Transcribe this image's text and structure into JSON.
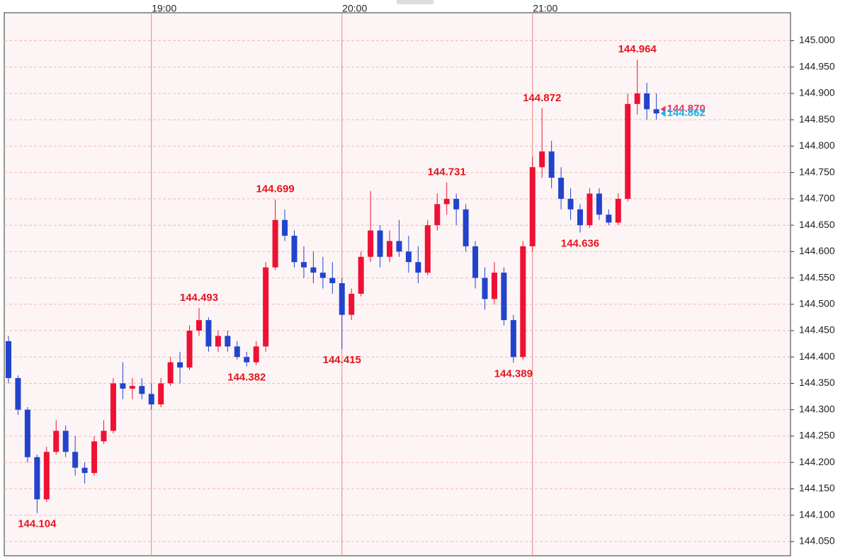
{
  "chart_data": {
    "type": "candlestick",
    "categories": [
      null,
      null,
      null,
      null,
      null,
      null,
      null,
      null,
      null,
      null,
      null,
      null,
      null,
      null,
      null,
      "19:00",
      null,
      null,
      null,
      null,
      null,
      null,
      null,
      null,
      null,
      null,
      null,
      null,
      null,
      null,
      null,
      null,
      null,
      null,
      null,
      "20:00",
      null,
      null,
      null,
      null,
      null,
      null,
      null,
      null,
      null,
      null,
      null,
      null,
      null,
      null,
      null,
      null,
      null,
      null,
      null,
      "21:00",
      null,
      null,
      null,
      null,
      null,
      null,
      null,
      null,
      null,
      null,
      null,
      null,
      null
    ],
    "open": [
      144.43,
      144.36,
      144.3,
      144.21,
      144.13,
      144.22,
      144.26,
      144.22,
      144.19,
      144.18,
      144.24,
      144.26,
      144.35,
      144.34,
      144.345,
      144.33,
      144.31,
      144.35,
      144.39,
      144.38,
      144.45,
      144.47,
      144.42,
      144.44,
      144.42,
      144.4,
      144.39,
      144.42,
      144.57,
      144.66,
      144.63,
      144.58,
      144.57,
      144.56,
      144.55,
      144.54,
      144.48,
      144.52,
      144.59,
      144.64,
      144.59,
      144.62,
      144.6,
      144.58,
      144.56,
      144.65,
      144.69,
      144.7,
      144.68,
      144.61,
      144.55,
      144.51,
      144.56,
      144.47,
      144.4,
      144.61,
      144.76,
      144.79,
      144.74,
      144.7,
      144.68,
      144.65,
      144.71,
      144.67,
      144.655,
      144.7,
      144.88,
      144.9,
      144.87
    ],
    "high": [
      144.44,
      144.365,
      144.305,
      144.215,
      144.23,
      144.28,
      144.27,
      144.25,
      144.2,
      144.25,
      144.28,
      144.36,
      144.39,
      144.36,
      144.36,
      144.35,
      144.36,
      144.4,
      144.41,
      144.46,
      144.493,
      144.475,
      144.45,
      144.45,
      144.43,
      144.41,
      144.43,
      144.58,
      144.699,
      144.68,
      144.64,
      144.61,
      144.6,
      144.59,
      144.58,
      144.55,
      144.53,
      144.6,
      144.715,
      144.65,
      144.64,
      144.66,
      144.63,
      144.61,
      144.66,
      144.71,
      144.731,
      144.71,
      144.69,
      144.62,
      144.57,
      144.58,
      144.57,
      144.48,
      144.62,
      144.78,
      144.872,
      144.81,
      144.76,
      144.72,
      144.69,
      144.72,
      144.72,
      144.68,
      144.71,
      144.9,
      144.964,
      144.92,
      144.9
    ],
    "low": [
      144.35,
      144.29,
      144.2,
      144.104,
      144.125,
      144.215,
      144.21,
      144.175,
      144.16,
      144.175,
      144.235,
      144.255,
      144.32,
      144.32,
      144.32,
      144.3,
      144.305,
      144.345,
      144.35,
      144.375,
      144.44,
      144.41,
      144.41,
      144.41,
      144.395,
      144.382,
      144.385,
      144.41,
      144.565,
      144.62,
      144.57,
      144.55,
      144.54,
      144.53,
      144.52,
      144.415,
      144.47,
      144.515,
      144.58,
      144.57,
      144.58,
      144.59,
      144.56,
      144.54,
      144.555,
      144.64,
      144.67,
      144.65,
      144.6,
      144.53,
      144.49,
      144.5,
      144.46,
      144.389,
      144.395,
      144.6,
      144.74,
      144.72,
      144.68,
      144.66,
      144.636,
      144.645,
      144.66,
      144.65,
      144.65,
      144.695,
      144.86,
      144.85,
      144.85
    ],
    "close": [
      144.36,
      144.3,
      144.21,
      144.13,
      144.22,
      144.26,
      144.22,
      144.19,
      144.18,
      144.24,
      144.26,
      144.35,
      144.34,
      144.345,
      144.33,
      144.31,
      144.35,
      144.39,
      144.38,
      144.45,
      144.47,
      144.42,
      144.44,
      144.42,
      144.4,
      144.39,
      144.42,
      144.57,
      144.66,
      144.63,
      144.58,
      144.57,
      144.56,
      144.55,
      144.54,
      144.48,
      144.52,
      144.59,
      144.64,
      144.59,
      144.62,
      144.6,
      144.58,
      144.56,
      144.65,
      144.69,
      144.7,
      144.68,
      144.61,
      144.55,
      144.51,
      144.56,
      144.47,
      144.4,
      144.61,
      144.76,
      144.79,
      144.74,
      144.7,
      144.68,
      144.65,
      144.71,
      144.67,
      144.655,
      144.7,
      144.88,
      144.9,
      144.87,
      144.862
    ],
    "up_color": "#ee1133",
    "down_color": "#2244cc",
    "ylim": [
      144.023,
      145.053
    ],
    "yticks": [
      {
        "value": 144.05,
        "label": "144.050"
      },
      {
        "value": 144.1,
        "label": "144.100"
      },
      {
        "value": 144.15,
        "label": "144.150"
      },
      {
        "value": 144.2,
        "label": "144.200"
      },
      {
        "value": 144.25,
        "label": "144.250"
      },
      {
        "value": 144.3,
        "label": "144.300"
      },
      {
        "value": 144.35,
        "label": "144.350"
      },
      {
        "value": 144.4,
        "label": "144.400"
      },
      {
        "value": 144.45,
        "label": "144.450"
      },
      {
        "value": 144.5,
        "label": "144.500"
      },
      {
        "value": 144.55,
        "label": "144.550"
      },
      {
        "value": 144.6,
        "label": "144.600"
      },
      {
        "value": 144.65,
        "label": "144.650"
      },
      {
        "value": 144.7,
        "label": "144.700"
      },
      {
        "value": 144.75,
        "label": "144.750"
      },
      {
        "value": 144.8,
        "label": "144.800"
      },
      {
        "value": 144.85,
        "label": "144.850"
      },
      {
        "value": 144.9,
        "label": "144.900"
      },
      {
        "value": 144.95,
        "label": "144.950"
      },
      {
        "value": 145,
        "label": "145.000"
      }
    ],
    "grid": true,
    "annotations": [
      {
        "value": 144.104,
        "label": "144.104"
      },
      {
        "value": 144.493,
        "label": "144.493"
      },
      {
        "value": 144.382,
        "label": "144.382"
      },
      {
        "value": 144.699,
        "label": "144.699"
      },
      {
        "value": 144.415,
        "label": "144.415"
      },
      {
        "value": 144.731,
        "label": "144.731"
      },
      {
        "value": 144.389,
        "label": "144.389"
      },
      {
        "value": 144.872,
        "label": "144.872"
      },
      {
        "value": 144.636,
        "label": "144.636"
      },
      {
        "value": 144.964,
        "label": "144.964"
      }
    ],
    "annotation_color": "#e5141e",
    "price_markers": [
      {
        "value": 144.87,
        "label": "144.870",
        "color": "#e5336b"
      },
      {
        "value": 144.862,
        "label": "144.862",
        "color": "#1ab3e6"
      }
    ]
  }
}
